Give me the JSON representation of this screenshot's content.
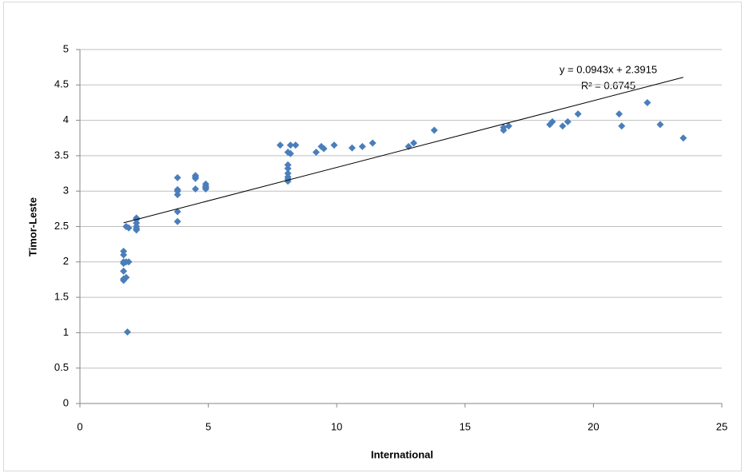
{
  "chart_data": {
    "type": "scatter",
    "x_label": "International",
    "y_label": "Timor-Leste",
    "color": "#4a7ebb",
    "x": [
      1.7,
      1.7,
      1.7,
      1.7,
      1.7,
      1.7,
      1.7,
      1.8,
      1.8,
      1.8,
      1.85,
      1.9,
      1.9,
      2.2,
      2.2,
      2.2,
      2.2,
      2.2,
      2.2,
      3.8,
      3.8,
      3.8,
      3.8,
      3.8,
      3.8,
      4.5,
      4.5,
      4.5,
      4.5,
      4.9,
      4.9,
      4.9,
      4.9,
      7.8,
      8.1,
      8.1,
      8.1,
      8.1,
      8.1,
      8.1,
      8.1,
      8.2,
      8.2,
      8.4,
      9.2,
      9.4,
      9.5,
      9.9,
      10.6,
      11.0,
      11.4,
      12.8,
      13.0,
      13.8,
      16.5,
      16.5,
      16.7,
      18.3,
      18.4,
      18.8,
      19.0,
      19.4,
      21.0,
      21.1,
      22.1,
      22.6,
      23.5
    ],
    "y": [
      2.15,
      2.1,
      2.0,
      1.98,
      1.87,
      1.76,
      1.74,
      1.78,
      2.0,
      2.5,
      1.01,
      2.0,
      2.48,
      2.62,
      2.6,
      2.55,
      2.5,
      2.47,
      2.45,
      3.19,
      3.02,
      3.0,
      2.95,
      2.71,
      2.57,
      3.22,
      3.2,
      3.18,
      3.03,
      3.1,
      3.07,
      3.05,
      3.03,
      3.65,
      3.55,
      3.37,
      3.32,
      3.25,
      3.2,
      3.17,
      3.14,
      3.65,
      3.53,
      3.65,
      3.55,
      3.63,
      3.6,
      3.65,
      3.61,
      3.63,
      3.68,
      3.63,
      3.68,
      3.86,
      3.86,
      3.9,
      3.92,
      3.94,
      3.98,
      3.92,
      3.98,
      4.09,
      4.09,
      3.92,
      4.25,
      3.94,
      3.75
    ],
    "trendline": {
      "slope": 0.0943,
      "intercept": 2.3915,
      "x": [
        1.7,
        23.5
      ],
      "equation": "y = 0.0943x + 2.3915",
      "r2": "R² = 0.6745"
    },
    "xlim": [
      0,
      25
    ],
    "ylim": [
      0,
      5
    ],
    "xticks": [
      0,
      5,
      10,
      15,
      20,
      25
    ],
    "yticks": [
      0,
      0.5,
      1,
      1.5,
      2,
      2.5,
      3,
      3.5,
      4,
      4.5,
      5
    ],
    "grid": true
  }
}
